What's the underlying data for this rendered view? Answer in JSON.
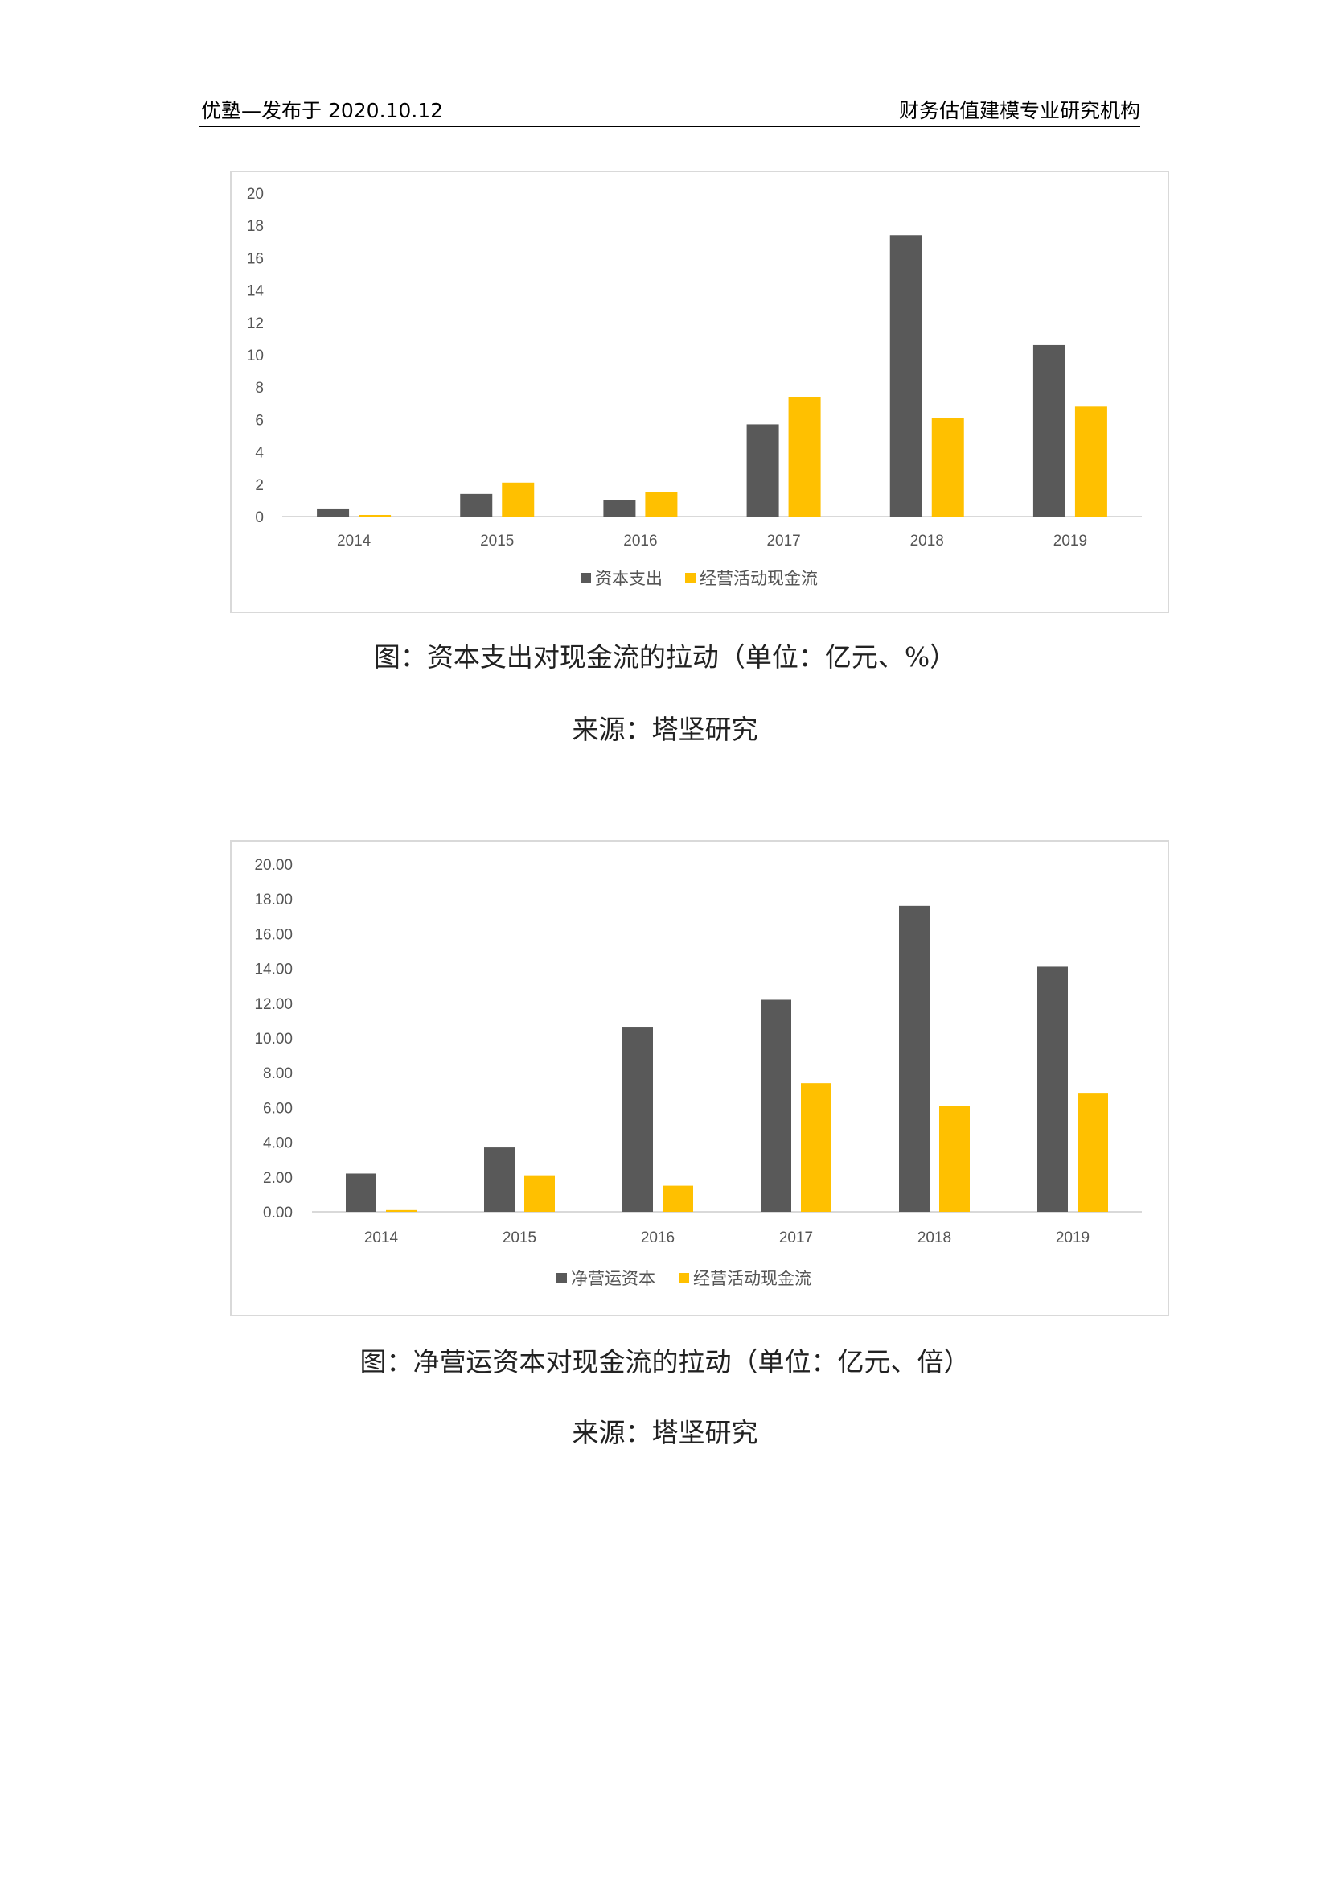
{
  "header": {
    "left": "优塾—发布于 2020.10.12",
    "right": "财务估值建模专业研究机构"
  },
  "colors": {
    "dark_bar": "#595959",
    "yellow_bar": "#FFC000",
    "axis": "#d9d9d9"
  },
  "chart_data": [
    {
      "type": "bar",
      "categories": [
        "2014",
        "2015",
        "2016",
        "2017",
        "2018",
        "2019"
      ],
      "series": [
        {
          "name": "资本支出",
          "values": [
            0.5,
            1.4,
            1.0,
            5.7,
            17.4,
            10.6
          ]
        },
        {
          "name": "经营活动现金流",
          "values": [
            0.1,
            2.1,
            1.5,
            7.4,
            6.1,
            6.8
          ]
        }
      ],
      "ylim": [
        0,
        20
      ],
      "yticks": [
        "0",
        "2",
        "4",
        "6",
        "8",
        "10",
        "12",
        "14",
        "16",
        "18",
        "20"
      ],
      "legend": "bottom",
      "grid": false,
      "caption": "图：资本支出对现金流的拉动（单位：亿元、%）",
      "source": "来源：塔坚研究"
    },
    {
      "type": "bar",
      "categories": [
        "2014",
        "2015",
        "2016",
        "2017",
        "2018",
        "2019"
      ],
      "series": [
        {
          "name": "净营运资本",
          "values": [
            2.2,
            3.7,
            10.6,
            12.2,
            17.6,
            14.1
          ]
        },
        {
          "name": "经营活动现金流",
          "values": [
            0.1,
            2.1,
            1.5,
            7.4,
            6.1,
            6.8
          ]
        }
      ],
      "ylim": [
        0,
        20
      ],
      "yticks": [
        "0.00",
        "2.00",
        "4.00",
        "6.00",
        "8.00",
        "10.00",
        "12.00",
        "14.00",
        "16.00",
        "18.00",
        "20.00"
      ],
      "legend": "bottom",
      "grid": false,
      "caption": "图：净营运资本对现金流的拉动（单位：亿元、倍）",
      "source": "来源：塔坚研究"
    }
  ]
}
